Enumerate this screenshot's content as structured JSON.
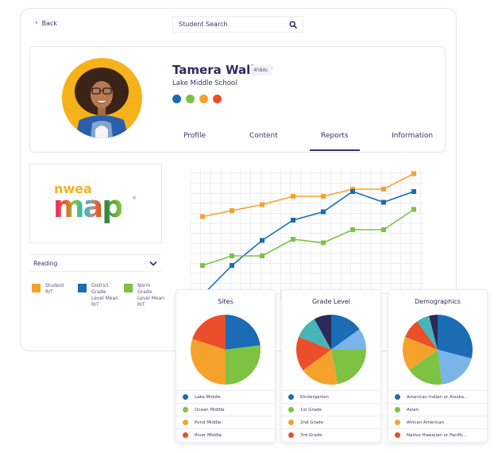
{
  "header": {
    "back_label": "Back",
    "search_placeholder": "Student Search"
  },
  "student": {
    "name": "Tamera Walker",
    "id_badge": "4h8Ac",
    "school": "Lake Middle School",
    "status_dots": [
      "#1b6bb5",
      "#7dc243",
      "#f5a22d",
      "#ea4e2b"
    ]
  },
  "tabs": [
    {
      "label": "Profile",
      "active": false
    },
    {
      "label": "Content",
      "active": false
    },
    {
      "label": "Reports",
      "active": true
    },
    {
      "label": "Information",
      "active": false
    }
  ],
  "logo": {
    "top_word": "nwea",
    "main_word": "map",
    "registered": "®"
  },
  "subject_select": {
    "value": "Reading"
  },
  "legend": [
    {
      "label": "Student RIT",
      "color": "#f5a22d"
    },
    {
      "label": "District Grade Level Mean RIT",
      "color": "#1b6bb5"
    },
    {
      "label": "Norm Grade Level Mean RIT",
      "color": "#7dc243"
    }
  ],
  "chart_data": [
    {
      "type": "line",
      "title": "",
      "xlabel": "",
      "ylabel": "",
      "grid": true,
      "x": [
        1,
        2,
        3,
        4,
        5,
        6,
        7,
        8
      ],
      "series": [
        {
          "name": "Student RIT",
          "color": "#f5a22d",
          "values": [
            6.1,
            6.6,
            7.1,
            7.8,
            7.8,
            8.4,
            8.4,
            9.7
          ]
        },
        {
          "name": "District Grade Level Mean RIT",
          "color": "#1b6bb5",
          "values": [
            -0.5,
            2.0,
            4.1,
            5.8,
            6.5,
            8.2,
            7.3,
            8.2
          ]
        },
        {
          "name": "Norm Grade Level Mean RIT",
          "color": "#7dc243",
          "values": [
            2.0,
            2.8,
            2.8,
            4.2,
            3.9,
            5.0,
            5.0,
            6.7
          ]
        }
      ],
      "ylim": [
        0,
        11
      ]
    },
    {
      "type": "pie",
      "title": "Sites",
      "categories": [
        "Lake Middle",
        "Ocean Middle",
        "Pond Middle",
        "River Middle"
      ],
      "values": [
        23,
        27,
        30,
        20
      ],
      "colors": [
        "#1b6bb5",
        "#7dc243",
        "#f5a22d",
        "#ea4e2b"
      ]
    },
    {
      "type": "pie",
      "title": "Grade Level",
      "categories": [
        "Kindergarten",
        "Light blue (unlabeled)",
        "1st Grade",
        "2nd Grade",
        "3rd Grade",
        "Teal (unlabeled)",
        "Navy (unlabeled)"
      ],
      "values": [
        15,
        10,
        22,
        18,
        16,
        11,
        8
      ],
      "colors": [
        "#1b6bb5",
        "#7ab4e8",
        "#7dc243",
        "#f5a22d",
        "#ea4e2b",
        "#45b5b8",
        "#2b2a58"
      ]
    },
    {
      "type": "pie",
      "title": "Demographics",
      "categories": [
        "American Indian or Alaska...",
        "Light blue (unlabeled)",
        "Asian",
        "African American",
        "Native Hawaiian or Pacific...",
        "Teal (unlabeled)",
        "Navy (unlabeled)"
      ],
      "values": [
        29,
        19,
        17,
        16,
        9,
        6,
        4
      ],
      "colors": [
        "#1b6bb5",
        "#7ab4e8",
        "#7dc243",
        "#f5a22d",
        "#ea4e2b",
        "#45b5b8",
        "#2b2a58"
      ]
    }
  ],
  "pies": [
    {
      "title": "Sites",
      "legend": [
        {
          "label": "Lake Middle",
          "color": "#1b6bb5"
        },
        {
          "label": "Ocean Middle",
          "color": "#7dc243"
        },
        {
          "label": "Pond Middle",
          "color": "#f5a22d"
        },
        {
          "label": "River Middle",
          "color": "#ea4e2b"
        }
      ]
    },
    {
      "title": "Grade Level",
      "legend": [
        {
          "label": "Kindergarten",
          "color": "#1b6bb5"
        },
        {
          "label": "1st Grade",
          "color": "#7dc243"
        },
        {
          "label": "2nd Grade",
          "color": "#f5a22d"
        },
        {
          "label": "3rd Grade",
          "color": "#ea4e2b"
        }
      ]
    },
    {
      "title": "Demographics",
      "legend": [
        {
          "label": "American Indian or Alaska...",
          "color": "#1b6bb5"
        },
        {
          "label": "Asian",
          "color": "#7dc243"
        },
        {
          "label": "African American",
          "color": "#f5a22d"
        },
        {
          "label": "Native Hawaiian or Pacific...",
          "color": "#ea4e2b"
        }
      ]
    }
  ]
}
